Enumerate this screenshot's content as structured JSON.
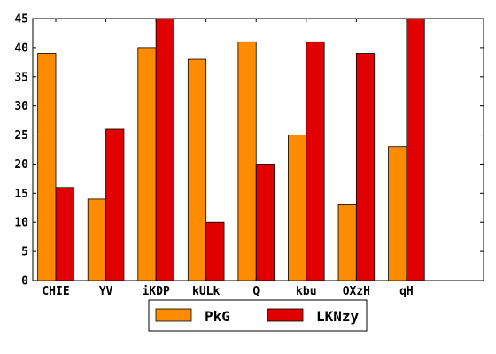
{
  "chart_data": {
    "type": "bar",
    "categories": [
      "CHIE",
      "YV",
      "iKDP",
      "kULk",
      "Q",
      "kbu",
      "OXzH",
      "qH"
    ],
    "series": [
      {
        "name": "PkG",
        "color": "#ff8c00",
        "values": [
          39,
          14,
          40,
          38,
          41,
          25,
          13,
          23
        ]
      },
      {
        "name": "LKNzy",
        "color": "#e00000",
        "values": [
          16,
          26,
          45,
          10,
          20,
          41,
          39,
          45
        ]
      }
    ],
    "ylim": [
      0,
      45
    ],
    "yticks": [
      0,
      5,
      10,
      15,
      20,
      25,
      30,
      35,
      40,
      45
    ],
    "grid": false,
    "legend_position": "bottom-center"
  }
}
